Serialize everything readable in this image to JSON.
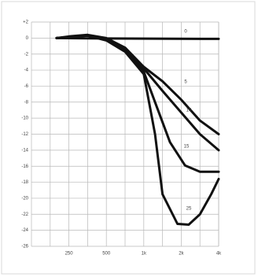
{
  "chart_data": {
    "type": "line",
    "xlim": [
      -1,
      4
    ],
    "xticks": [
      {
        "value": 0,
        "label": "250"
      },
      {
        "value": 1,
        "label": "500"
      },
      {
        "value": 2,
        "label": "1k"
      },
      {
        "value": 3,
        "label": "2k"
      },
      {
        "value": 4,
        "label": "4k"
      }
    ],
    "xgrid": [
      -0.5,
      0.5,
      1.5,
      2.5,
      3.5
    ],
    "ylim": [
      -26,
      2
    ],
    "yticks": [
      {
        "value": 2,
        "label": "+2"
      },
      0,
      -2,
      -4,
      -6,
      -8,
      -10,
      -12,
      -14,
      -16,
      -18,
      -20,
      -22,
      -24,
      -26
    ],
    "grid": true,
    "color": "#111111",
    "series": [
      {
        "name": "0",
        "x": [
          -0.33,
          1,
          4
        ],
        "values": [
          0,
          -0.05,
          -0.1
        ]
      },
      {
        "name": "5",
        "x": [
          -0.33,
          0,
          0.5,
          1,
          1.5,
          2,
          2.5,
          3,
          3.5,
          4
        ],
        "values": [
          0,
          0.2,
          0.4,
          0,
          -1.2,
          -3.6,
          -5.4,
          -7.7,
          -10.3,
          -12
        ]
      },
      {
        "name": "10",
        "x": [
          -0.33,
          0,
          0.5,
          1,
          1.5,
          2,
          2.5,
          3,
          3.5,
          4
        ],
        "values": [
          0,
          0.1,
          0.3,
          -0.2,
          -1.5,
          -3.8,
          -6.6,
          -9.3,
          -12,
          -14
        ]
      },
      {
        "name": "15",
        "x": [
          -0.33,
          0,
          0.5,
          1,
          1.5,
          2,
          2.3,
          2.7,
          3.1,
          3.5,
          4
        ],
        "values": [
          0,
          0.1,
          0.3,
          -0.2,
          -1.6,
          -4.2,
          -8,
          -13,
          -15.9,
          -16.7,
          -16.7
        ]
      },
      {
        "name": "25",
        "x": [
          -0.33,
          0,
          0.5,
          1,
          1.5,
          2,
          2.3,
          2.5,
          2.9,
          3.2,
          3.5,
          3.8,
          4
        ],
        "values": [
          0,
          0.1,
          0.3,
          -0.3,
          -1.7,
          -4.5,
          -12,
          -19.5,
          -23.2,
          -23.3,
          -22,
          -19.5,
          -17.6
        ]
      }
    ]
  }
}
